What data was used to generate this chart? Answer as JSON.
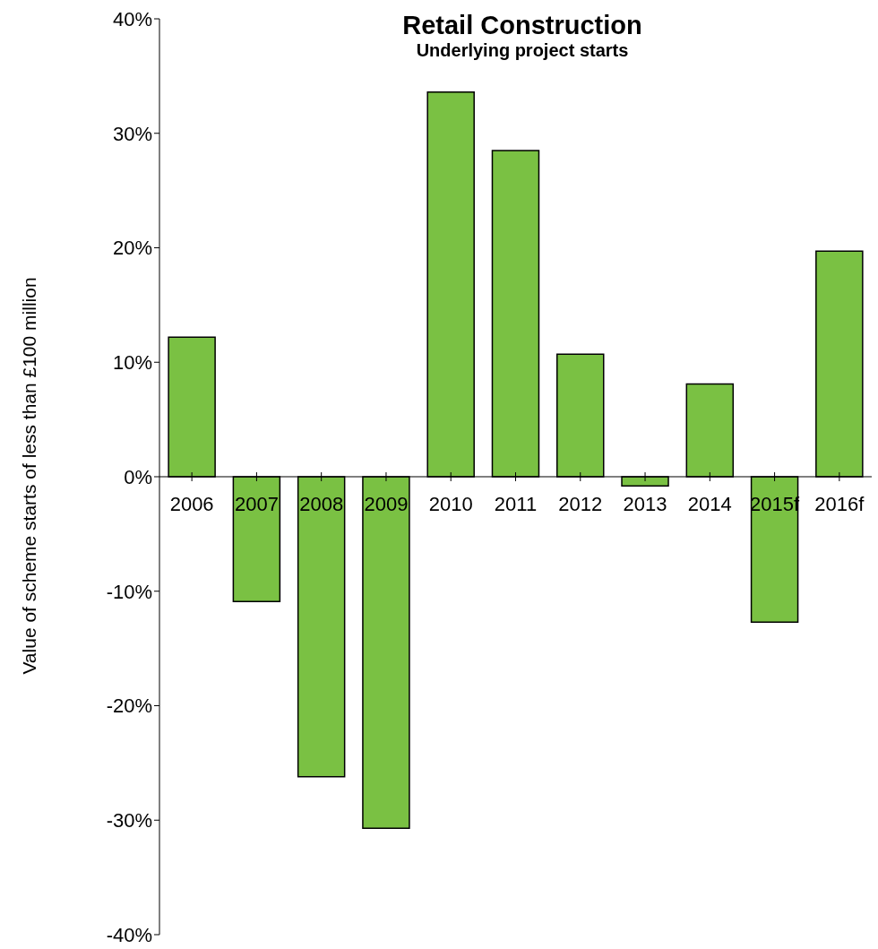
{
  "chart_data": {
    "type": "bar",
    "title": "Retail Construction",
    "subtitle": "Underlying project starts",
    "ylabel": "Value of scheme starts of less than £100 million",
    "categories": [
      "2006",
      "2007",
      "2008",
      "2009",
      "2010",
      "2011",
      "2012",
      "2013",
      "2014",
      "2015f",
      "2016f"
    ],
    "values": [
      12.2,
      -10.9,
      -26.2,
      -30.7,
      33.6,
      28.5,
      10.7,
      -0.8,
      8.1,
      -12.7,
      19.7
    ],
    "color": "#7ac143",
    "ylim": [
      -40,
      40
    ],
    "yticks": [
      {
        "value": -40,
        "label": "-40%"
      },
      {
        "value": -30,
        "label": "-30%"
      },
      {
        "value": -20,
        "label": "-20%"
      },
      {
        "value": -10,
        "label": "-10%"
      },
      {
        "value": 0,
        "label": "0%"
      },
      {
        "value": 10,
        "label": "10%"
      },
      {
        "value": 20,
        "label": "20%"
      },
      {
        "value": 30,
        "label": "30%"
      },
      {
        "value": 40,
        "label": "40%"
      }
    ],
    "grid": false,
    "legend": false
  }
}
